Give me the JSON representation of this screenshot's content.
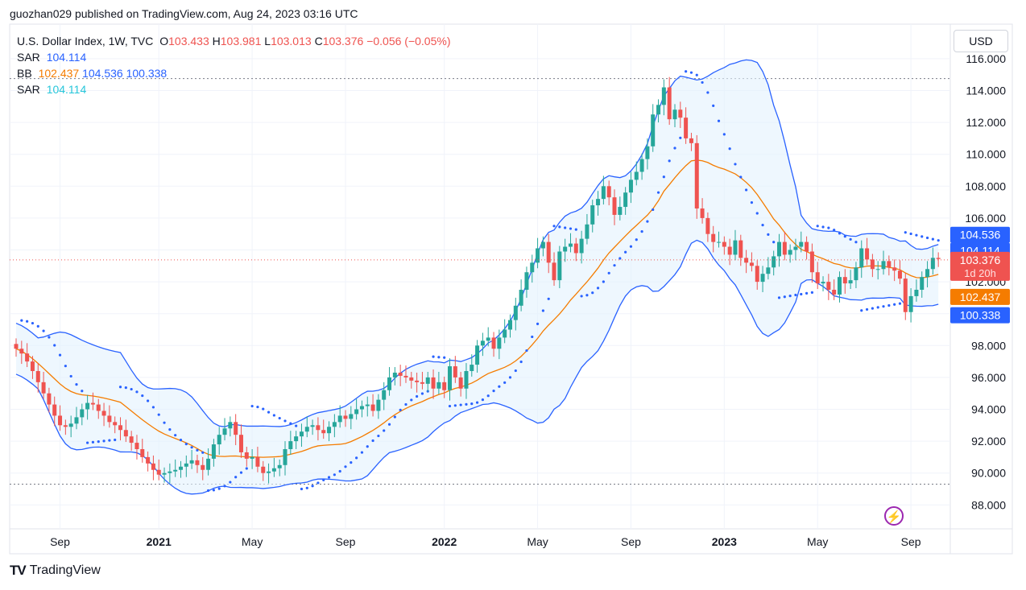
{
  "header": {
    "published_by": "guozhan029 published on TradingView.com, Aug 24, 2023 03:16 UTC"
  },
  "legend": {
    "symbol": "U.S. Dollar Index, 1W, TVC",
    "ohlc": {
      "o_label": "O",
      "o": "103.433",
      "h_label": "H",
      "h": "103.981",
      "l_label": "L",
      "l": "103.013",
      "c_label": "C",
      "c": "103.376",
      "change": "−0.056 (−0.05%)"
    },
    "sar1": {
      "label": "SAR",
      "value": "104.114"
    },
    "bb": {
      "label": "BB",
      "basis": "102.437",
      "upper": "104.536",
      "lower": "100.338"
    },
    "sar2": {
      "label": "SAR",
      "value": "104.114"
    }
  },
  "currency_button": "USD",
  "footer": {
    "brand": "TradingView",
    "logo": "tradingview-logo-icon"
  },
  "colors": {
    "up": "#26a69a",
    "down": "#ef5350",
    "bb_band": "#2962ff",
    "bb_basis": "#f57c00",
    "sar": "#2962ff",
    "band_fill": "#e3f2fd",
    "last_price": "#ef5350",
    "sar_label": "#26c6da"
  },
  "chart_data": {
    "type": "candlestick",
    "interval": "1W",
    "y_axis": {
      "min": 86.5,
      "max": 116.5,
      "ticks": [
        "88.000",
        "90.000",
        "92.000",
        "94.000",
        "96.000",
        "98.000",
        "100.000",
        "102.000",
        "104.000",
        "106.000",
        "108.000",
        "110.000",
        "112.000",
        "114.000",
        "116.000"
      ]
    },
    "x_axis": {
      "ticks": [
        {
          "label": "Sep",
          "year": false,
          "week": 8
        },
        {
          "label": "2021",
          "year": true,
          "week": 26
        },
        {
          "label": "May",
          "year": false,
          "week": 43
        },
        {
          "label": "Sep",
          "year": false,
          "week": 60
        },
        {
          "label": "2022",
          "year": true,
          "week": 78
        },
        {
          "label": "May",
          "year": false,
          "week": 95
        },
        {
          "label": "Sep",
          "year": false,
          "week": 112
        },
        {
          "label": "2023",
          "year": true,
          "week": 129
        },
        {
          "label": "May",
          "year": false,
          "week": 146
        },
        {
          "label": "Sep",
          "year": false,
          "week": 163
        }
      ]
    },
    "total_weeks": 170,
    "closes": [
      97.8,
      97.5,
      97.0,
      96.4,
      95.7,
      95.0,
      94.3,
      93.6,
      93.0,
      92.9,
      93.1,
      93.5,
      94.0,
      94.4,
      94.3,
      93.9,
      93.6,
      93.2,
      93.0,
      92.7,
      92.3,
      91.9,
      91.5,
      91.0,
      90.6,
      90.2,
      89.9,
      90.0,
      90.1,
      90.2,
      90.4,
      90.6,
      90.8,
      90.5,
      90.2,
      90.9,
      91.8,
      92.4,
      92.8,
      93.2,
      92.4,
      91.3,
      90.9,
      91.0,
      90.4,
      90.0,
      90.1,
      90.3,
      90.5,
      91.5,
      92.0,
      92.3,
      92.6,
      92.9,
      93.0,
      92.7,
      92.5,
      92.9,
      93.2,
      93.6,
      93.4,
      93.7,
      94.0,
      94.2,
      94.3,
      93.9,
      94.6,
      95.2,
      96.0,
      96.3,
      96.1,
      96.0,
      95.8,
      95.7,
      95.6,
      96.0,
      95.3,
      95.7,
      95.2,
      96.7,
      96.0,
      95.3,
      96.4,
      96.8,
      98.0,
      98.3,
      98.5,
      97.8,
      98.5,
      99.0,
      99.6,
      100.5,
      101.5,
      102.6,
      103.2,
      104.1,
      104.5,
      103.2,
      102.1,
      103.9,
      104.2,
      104.4,
      103.8,
      104.7,
      105.6,
      106.8,
      107.2,
      108.0,
      107.3,
      106.2,
      106.7,
      107.6,
      108.4,
      108.9,
      109.7,
      110.5,
      112.5,
      113.1,
      114.2,
      112.2,
      112.8,
      112.3,
      111.0,
      110.7,
      106.6,
      106.0,
      105.0,
      104.5,
      104.5,
      104.2,
      103.7,
      104.6,
      103.5,
      103.2,
      103.0,
      102.0,
      102.5,
      102.9,
      103.6,
      104.5,
      103.7,
      104.0,
      104.2,
      104.5,
      103.9,
      102.6,
      101.9,
      102.0,
      101.5,
      101.2,
      102.3,
      101.9,
      102.1,
      102.9,
      104.1,
      103.4,
      102.8,
      102.8,
      103.3,
      102.9,
      102.7,
      102.2,
      100.1,
      101.1,
      101.5,
      102.3,
      102.8,
      103.5,
      103.43
    ],
    "last_close": 103.376,
    "last_price_label": "103.376",
    "countdown": "1d 20h",
    "bb_upper_label": "104.536",
    "bb_basis_label": "102.437",
    "bb_lower_label": "100.338",
    "sar_label": "104.114",
    "reference_lines": [
      114.75,
      89.3
    ]
  }
}
